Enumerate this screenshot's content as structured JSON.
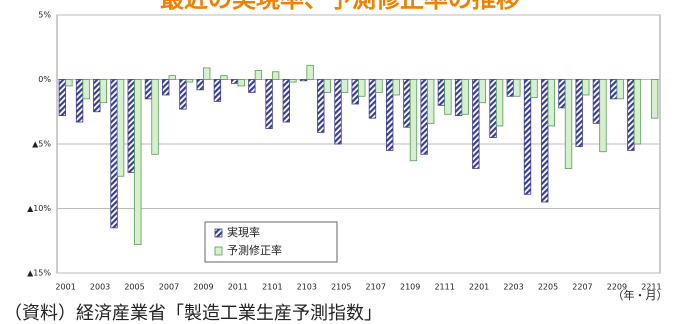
{
  "chart_data": {
    "type": "bar",
    "title": "最近の実現率、予測修正率の推移",
    "x_label": "（年・月）",
    "source": "（資料）経済産業省「製造工業生産予測指数」",
    "categories": [
      "2001",
      null,
      "2003",
      null,
      "2005",
      null,
      "2007",
      null,
      "2009",
      null,
      "2011",
      null,
      "2101",
      null,
      "2103",
      null,
      "2105",
      null,
      "2107",
      null,
      "2109",
      null,
      "2111",
      null,
      "2201",
      null,
      "2203",
      null,
      "2205",
      null,
      "2207",
      null,
      "2209",
      null,
      "2211"
    ],
    "series": [
      {
        "name": "実現率",
        "color": "#3a3f8f",
        "values": [
          -2.8,
          -3.3,
          -2.5,
          -11.5,
          -7.2,
          -1.5,
          -1.2,
          -2.3,
          -0.8,
          -1.7,
          -0.3,
          -1.0,
          -3.8,
          -3.3,
          -0.1,
          -4.1,
          -5.0,
          -1.9,
          -3.0,
          -5.5,
          -3.7,
          -5.8,
          -2.0,
          -2.8,
          -6.9,
          -4.5,
          -1.3,
          -8.9,
          -9.5,
          -2.2,
          -5.2,
          -3.4,
          -1.5,
          -5.5,
          null
        ]
      },
      {
        "name": "予測修正率",
        "color": "#d6efcc",
        "values": [
          -0.5,
          -1.5,
          -1.8,
          -7.5,
          -12.8,
          -5.8,
          0.3,
          -0.2,
          0.9,
          0.3,
          -0.5,
          0.7,
          0.6,
          -0.2,
          1.1,
          -1.0,
          -1.0,
          -1.3,
          -1.0,
          -1.2,
          -6.3,
          -3.4,
          -2.7,
          -2.7,
          -1.8,
          -3.6,
          -1.3,
          -1.4,
          -3.6,
          -6.9,
          -1.2,
          -5.6,
          -1.5,
          -5.0,
          -3.0
        ]
      }
    ],
    "ylim": [
      -15,
      5
    ],
    "yticks": [
      {
        "value": -15,
        "label": "▲15%"
      },
      {
        "value": -10,
        "label": "▲10%"
      },
      {
        "value": -5,
        "label": "▲5%"
      },
      {
        "value": 0,
        "label": "0%"
      },
      {
        "value": 5,
        "label": "5%"
      }
    ],
    "grid": true
  }
}
